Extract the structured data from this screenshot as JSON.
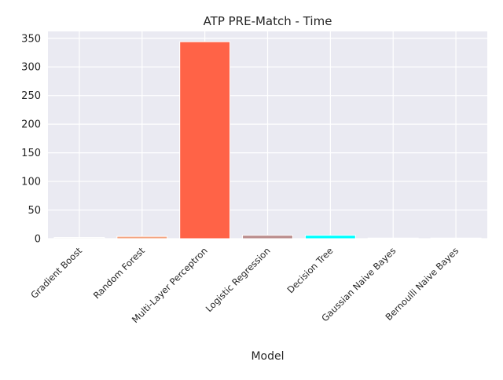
{
  "chart_data": {
    "type": "bar",
    "title": "ATP PRE-Match - Time",
    "xlabel": "Model",
    "ylabel": "",
    "categories": [
      "Gradient Boost",
      "Random Forest",
      "Multi-Layer Perceptron",
      "Logistic Regression",
      "Decision Tree",
      "Gaussian Naive Bayes",
      "Bernoulli Naive Bayes"
    ],
    "values": [
      2,
      4,
      344,
      6,
      6,
      0.5,
      0.5
    ],
    "colors": [
      "#f5f5f5",
      "#f4a582",
      "#ff6347",
      "#bc8f8f",
      "#00ffff",
      "#e0e0e0",
      "#e0e0e0"
    ],
    "ylim": [
      0,
      362
    ],
    "yticks": [
      0,
      50,
      100,
      150,
      200,
      250,
      300,
      350
    ],
    "ytick_labels": [
      "0",
      "50",
      "100",
      "150",
      "200",
      "250",
      "300",
      "350"
    ],
    "grid": true,
    "style": {
      "background": "#eaeaf2",
      "grid_color": "#ffffff"
    }
  }
}
